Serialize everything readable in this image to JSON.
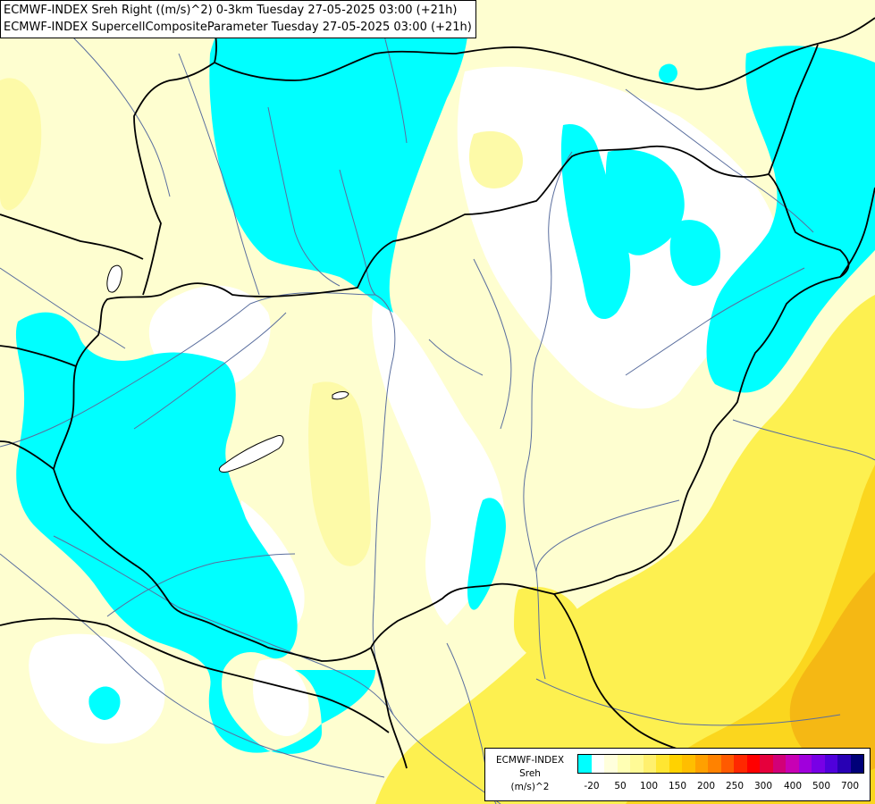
{
  "header": {
    "line1": "ECMWF-INDEX Sreh Right ((m/s)^2) 0-3km Tuesday 27-05-2025 03:00 (+21h)",
    "line2": "ECMWF-INDEX SupercellCompositeParameter Tuesday 27-05-2025 03:00 (+21h)"
  },
  "legend": {
    "line1": "ECMWF-INDEX",
    "line2": "Sreh",
    "line3": "(m/s)^2",
    "colors": [
      "#00ffff",
      "#ffffff",
      "#ffffdc",
      "#ffffb4",
      "#fffa96",
      "#fff06e",
      "#ffe632",
      "#ffd200",
      "#ffbe00",
      "#ffa000",
      "#ff8200",
      "#ff5a00",
      "#ff2800",
      "#ff0000",
      "#e6003c",
      "#d20078",
      "#c800b4",
      "#a000dc",
      "#7800e6",
      "#5000dc",
      "#2800b4",
      "#000078"
    ],
    "ticks": [
      "-20",
      "50",
      "100",
      "150",
      "200",
      "250",
      "300",
      "400",
      "500",
      "700"
    ]
  },
  "colors": {
    "cyan": "#00ffff",
    "white": "#ffffff",
    "pale": "#fefed0",
    "light_yellow": "#fdfaa8",
    "yellow": "#fdf050",
    "gold": "#fbd61e",
    "orange": "#f5b814",
    "border": "#000000",
    "river": "#5a6e9e"
  }
}
